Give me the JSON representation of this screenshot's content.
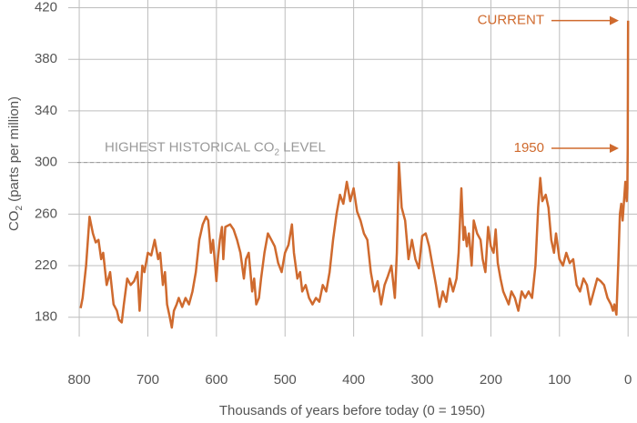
{
  "chart_data": {
    "type": "line",
    "x_label": "Thousands of years before today (0 = 1950)",
    "y_label": [
      "CO",
      "2",
      " (parts per million)"
    ],
    "threshold": 300,
    "threshold_label": [
      "HIGHEST HISTORICAL CO",
      "2",
      " LEVEL"
    ],
    "annotations": [
      {
        "text": "CURRENT",
        "y": 410
      },
      {
        "text": "1950",
        "y": 311
      }
    ],
    "color": "#cf6a2e",
    "grid": true,
    "xlim": [
      816,
      -13
    ],
    "ylim": [
      165,
      426
    ],
    "xticks": [
      800,
      700,
      600,
      500,
      400,
      300,
      200,
      100,
      0
    ],
    "yticks": [
      180,
      220,
      260,
      300,
      340,
      380,
      420
    ],
    "x": [
      798,
      795,
      790,
      785,
      780,
      776,
      772,
      768,
      765,
      760,
      755,
      750,
      745,
      742,
      738,
      735,
      730,
      725,
      720,
      715,
      712,
      708,
      705,
      700,
      695,
      690,
      685,
      682,
      678,
      675,
      672,
      668,
      665,
      662,
      658,
      655,
      650,
      645,
      640,
      635,
      630,
      625,
      620,
      615,
      612,
      608,
      605,
      600,
      598,
      595,
      592,
      590,
      587,
      580,
      575,
      570,
      565,
      560,
      557,
      553,
      548,
      545,
      542,
      538,
      535,
      530,
      525,
      520,
      515,
      510,
      505,
      500,
      495,
      490,
      487,
      482,
      478,
      475,
      470,
      465,
      460,
      455,
      450,
      445,
      440,
      435,
      430,
      425,
      420,
      415,
      410,
      405,
      400,
      395,
      390,
      385,
      380,
      375,
      370,
      365,
      360,
      355,
      350,
      345,
      340,
      337,
      334,
      330,
      325,
      320,
      315,
      310,
      305,
      300,
      295,
      290,
      285,
      280,
      275,
      270,
      265,
      260,
      255,
      250,
      247,
      243,
      240,
      238,
      235,
      232,
      228,
      225,
      220,
      215,
      212,
      208,
      204,
      200,
      196,
      193,
      190,
      186,
      182,
      178,
      174,
      170,
      165,
      160,
      155,
      150,
      145,
      140,
      135,
      131,
      128,
      125,
      120,
      116,
      112,
      108,
      105,
      100,
      95,
      90,
      85,
      80,
      75,
      70,
      65,
      60,
      55,
      50,
      45,
      40,
      35,
      30,
      25,
      22,
      20,
      17,
      14,
      12,
      10,
      8,
      6,
      4,
      2,
      1,
      0.5,
      0
    ],
    "values": [
      187,
      195,
      220,
      258,
      245,
      238,
      240,
      225,
      230,
      205,
      215,
      190,
      185,
      178,
      176,
      190,
      210,
      205,
      208,
      215,
      185,
      220,
      215,
      230,
      228,
      240,
      225,
      230,
      205,
      215,
      190,
      180,
      172,
      185,
      190,
      195,
      188,
      195,
      190,
      200,
      215,
      240,
      252,
      258,
      255,
      230,
      240,
      208,
      225,
      240,
      250,
      225,
      250,
      252,
      248,
      240,
      230,
      210,
      225,
      230,
      200,
      210,
      190,
      195,
      210,
      230,
      245,
      240,
      235,
      222,
      215,
      230,
      236,
      252,
      230,
      210,
      215,
      200,
      205,
      195,
      190,
      195,
      192,
      205,
      200,
      215,
      240,
      260,
      275,
      268,
      285,
      270,
      280,
      262,
      255,
      245,
      240,
      215,
      200,
      208,
      190,
      205,
      212,
      220,
      195,
      230,
      300,
      265,
      255,
      225,
      240,
      225,
      218,
      243,
      245,
      235,
      220,
      205,
      188,
      200,
      192,
      210,
      200,
      210,
      230,
      280,
      240,
      250,
      235,
      245,
      220,
      255,
      245,
      240,
      225,
      215,
      250,
      235,
      230,
      248,
      222,
      210,
      200,
      195,
      190,
      200,
      195,
      185,
      200,
      195,
      200,
      195,
      220,
      265,
      288,
      270,
      275,
      265,
      240,
      230,
      245,
      225,
      220,
      230,
      222,
      225,
      205,
      200,
      210,
      205,
      190,
      200,
      210,
      208,
      205,
      195,
      190,
      185,
      190,
      182,
      225,
      260,
      268,
      255,
      270,
      285,
      270,
      280,
      311,
      410
    ]
  }
}
